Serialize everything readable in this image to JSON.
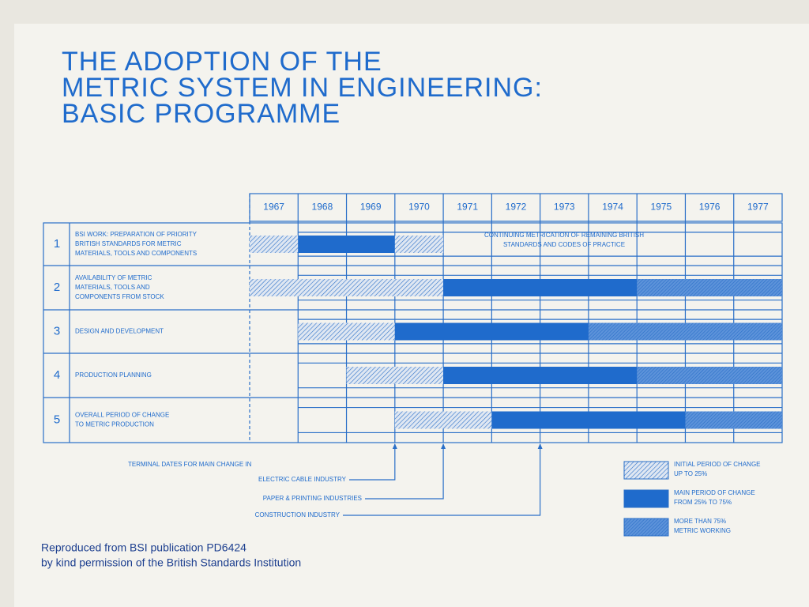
{
  "chart_data": {
    "type": "gantt",
    "title": [
      "THE ADOPTION OF THE",
      "METRIC SYSTEM IN ENGINEERING:",
      "BASIC PROGRAMME"
    ],
    "xlim": [
      1967,
      1978
    ],
    "xticks": [
      1967,
      1968,
      1969,
      1970,
      1971,
      1972,
      1973,
      1974,
      1975,
      1976,
      1977
    ],
    "rows": [
      {
        "number": "1",
        "label": [
          "BSI WORK: PREPARATION OF PRIORITY",
          "BRITISH STANDARDS FOR METRIC",
          "MATERIALS, TOOLS AND COMPONENTS"
        ],
        "segments": [
          {
            "start": 1967,
            "end": 1968,
            "phase": 0
          },
          {
            "start": 1968,
            "end": 1970,
            "phase": 1
          },
          {
            "start": 1970,
            "end": 1971,
            "phase": 0
          }
        ],
        "note": [
          "CONTINUING METRICATION OF REMAINING BRITISH",
          "STANDARDS AND CODES OF PRACTICE"
        ]
      },
      {
        "number": "2",
        "label": [
          "AVAILABILITY OF METRIC",
          "MATERIALS, TOOLS AND",
          "COMPONENTS FROM STOCK"
        ],
        "segments": [
          {
            "start": 1967,
            "end": 1971,
            "phase": 0
          },
          {
            "start": 1971,
            "end": 1975,
            "phase": 1
          },
          {
            "start": 1975,
            "end": 1978,
            "phase": 2
          }
        ]
      },
      {
        "number": "3",
        "label": [
          "DESIGN AND DEVELOPMENT"
        ],
        "segments": [
          {
            "start": 1968,
            "end": 1970,
            "phase": 0
          },
          {
            "start": 1970,
            "end": 1974,
            "phase": 1
          },
          {
            "start": 1974,
            "end": 1978,
            "phase": 2
          }
        ]
      },
      {
        "number": "4",
        "label": [
          "PRODUCTION PLANNING"
        ],
        "segments": [
          {
            "start": 1969,
            "end": 1971,
            "phase": 0
          },
          {
            "start": 1971,
            "end": 1975,
            "phase": 1
          },
          {
            "start": 1975,
            "end": 1978,
            "phase": 2
          }
        ]
      },
      {
        "number": "5",
        "label": [
          "OVERALL PERIOD OF CHANGE",
          "TO METRIC PRODUCTION"
        ],
        "segments": [
          {
            "start": 1970,
            "end": 1972,
            "phase": 0
          },
          {
            "start": 1972,
            "end": 1976,
            "phase": 1
          },
          {
            "start": 1976,
            "end": 1978,
            "phase": 2
          }
        ]
      }
    ],
    "phases": [
      {
        "name": [
          "INITIAL PERIOD OF CHANGE",
          "UP TO 25%"
        ],
        "pattern": "hatch",
        "color": "#5b8fd6"
      },
      {
        "name": [
          "MAIN PERIOD OF CHANGE",
          "FROM 25% TO 75%"
        ],
        "pattern": "solid",
        "color": "#1f6bcc"
      },
      {
        "name": [
          "MORE THAN 75%",
          "METRIC WORKING"
        ],
        "pattern": "dense",
        "color": "#3c7fd4"
      }
    ],
    "markers": {
      "title": "TERMINAL DATES FOR MAIN CHANGE IN",
      "items": [
        {
          "label": "ELECTRIC CABLE INDUSTRY",
          "year": 1970
        },
        {
          "label": "PAPER & PRINTING INDUSTRIES",
          "year": 1971
        },
        {
          "label": "CONSTRUCTION INDUSTRY",
          "year": 1973
        }
      ]
    },
    "footer": [
      "Reproduced from BSI publication PD6424",
      "by kind permission of the British Standards Institution"
    ]
  }
}
